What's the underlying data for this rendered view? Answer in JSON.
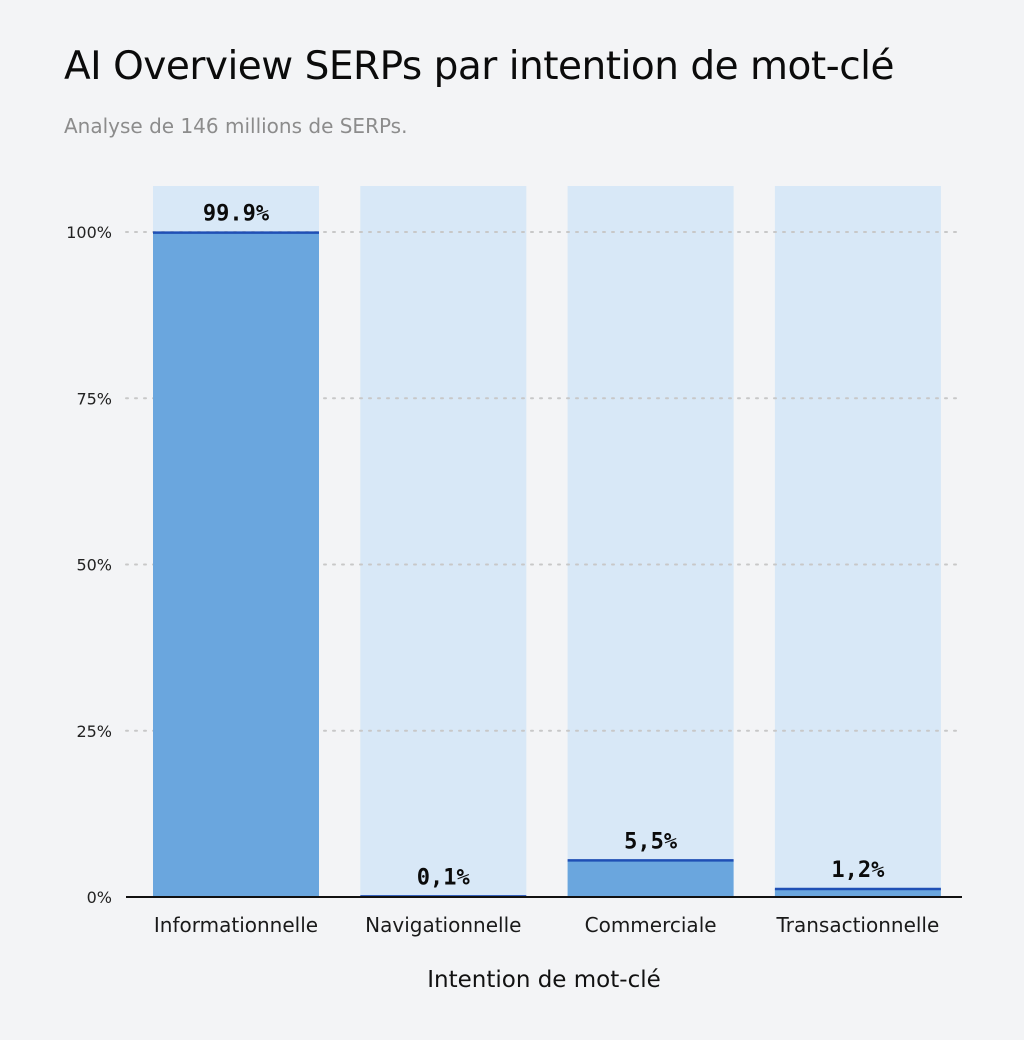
{
  "chart_data": {
    "type": "bar",
    "title": "AI Overview SERPs par intention de mot-clé",
    "subtitle": "Analyse de 146 millions de SERPs.",
    "xlabel": "Intention de mot-clé",
    "ylabel": "",
    "categories": [
      "Informationnelle",
      "Navigationnelle",
      "Commerciale",
      "Transactionnelle"
    ],
    "values": [
      99.9,
      0.1,
      5.5,
      1.2
    ],
    "value_labels": [
      "99.9%",
      "0,1%",
      "5,5%",
      "1,2%"
    ],
    "ylim": [
      0,
      100
    ],
    "yticks": [
      0,
      25,
      50,
      75,
      100
    ],
    "ytick_labels": [
      "0%",
      "25%",
      "50%",
      "75%",
      "100%"
    ],
    "grid": true,
    "colors": {
      "bar_fill": "#6aa6de",
      "bar_background": "#d8e8f7",
      "bar_top_line": "#1f4fb5",
      "gridline": "#c8c8c8",
      "axis": "#111111"
    }
  }
}
